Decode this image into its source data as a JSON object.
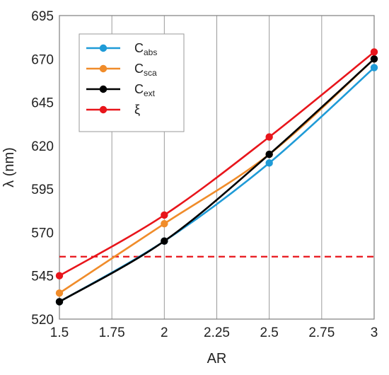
{
  "chart_data": {
    "type": "line",
    "xlabel": "AR",
    "ylabel": "λ (nm)",
    "xlim": [
      1.5,
      3
    ],
    "ylim": [
      520,
      695
    ],
    "x_ticks": [
      1.5,
      1.75,
      2,
      2.25,
      2.5,
      2.75,
      3
    ],
    "x_tick_labels": [
      "1.5",
      "1.75",
      "2",
      "2.25",
      "2.5",
      "2.75",
      "3"
    ],
    "y_ticks": [
      520,
      545,
      570,
      595,
      620,
      645,
      670,
      695
    ],
    "y_tick_labels": [
      "520",
      "545",
      "570",
      "595",
      "620",
      "645",
      "670",
      "695"
    ],
    "grid": "vertical",
    "legend_position": "top-left",
    "x": [
      1.5,
      2,
      2.5,
      3
    ],
    "series": [
      {
        "name": "C",
        "subscript": "abs",
        "color": "#1f9bd7",
        "values": [
          530,
          565,
          610,
          665
        ]
      },
      {
        "name": "C",
        "subscript": "sca",
        "color": "#f08c2a",
        "values": [
          535,
          575,
          615,
          670
        ]
      },
      {
        "name": "C",
        "subscript": "ext",
        "color": "#000000",
        "values": [
          530,
          565,
          615,
          670
        ]
      },
      {
        "name": "ξ",
        "subscript": "",
        "color": "#e8151b",
        "values": [
          545,
          580,
          625,
          674
        ]
      }
    ],
    "reference_line": {
      "y": 556,
      "color": "#e8151b",
      "style": "dashed"
    }
  }
}
